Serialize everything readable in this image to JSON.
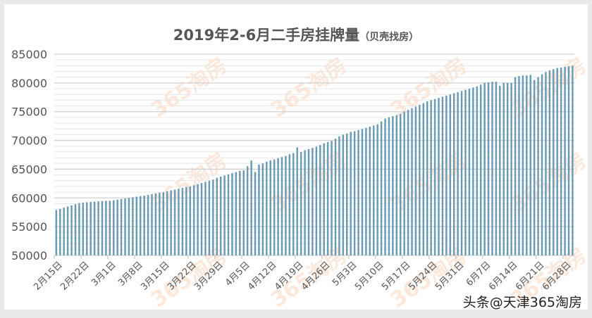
{
  "title": "2019年2-6月二手房挂牌量",
  "subtitle": "（贝壳找房）",
  "watermark": "365淘房",
  "footer": "头条@天津365淘房",
  "colors": {
    "bar": "#6a9ab4",
    "bar_edge": "#4f7f99",
    "grid_major": "#d0d0d0",
    "grid_minor": "#e6e6e6"
  },
  "chart_data": {
    "type": "bar",
    "title": "2019年2-6月二手房挂牌量（贝壳找房）",
    "ylim": [
      50000,
      85000
    ],
    "yticks": [
      50000,
      55000,
      60000,
      65000,
      70000,
      75000,
      80000,
      85000
    ],
    "grid": true,
    "start_date": "2月15日",
    "tick_labels": [
      "2月15日",
      "2月22日",
      "3月1日",
      "3月8日",
      "3月15日",
      "3月22日",
      "3月29日",
      "4月5日",
      "4月12日",
      "4月19日",
      "4月26日",
      "5月3日",
      "5月10日",
      "5月17日",
      "5月24日",
      "5月31日",
      "6月7日",
      "6月14日",
      "6月21日",
      "6月28日"
    ],
    "values": [
      57900,
      58100,
      58300,
      58500,
      58700,
      58900,
      59100,
      59200,
      59250,
      59300,
      59350,
      59400,
      59450,
      59500,
      59500,
      59600,
      59700,
      59800,
      59900,
      60000,
      60100,
      60200,
      60300,
      60400,
      60500,
      60650,
      60800,
      60900,
      61000,
      61150,
      61300,
      61450,
      61600,
      61750,
      61900,
      62000,
      62200,
      62400,
      62600,
      62800,
      63000,
      63200,
      63500,
      63700,
      63900,
      64100,
      64300,
      64500,
      64700,
      64800,
      65500,
      66500,
      64500,
      65800,
      66000,
      66300,
      66500,
      66700,
      66900,
      67100,
      67300,
      67600,
      67800,
      68800,
      68000,
      68300,
      68500,
      68700,
      68900,
      69200,
      69500,
      69700,
      69900,
      70300,
      70700,
      71000,
      71200,
      71500,
      71600,
      71800,
      72000,
      72200,
      72400,
      72600,
      72800,
      73300,
      73800,
      74000,
      74200,
      74400,
      74600,
      75000,
      75300,
      75600,
      75900,
      76200,
      76500,
      76800,
      77000,
      77200,
      77400,
      77600,
      77800,
      78000,
      78200,
      78400,
      78600,
      78800,
      79000,
      79200,
      79400,
      79700,
      80000,
      80100,
      80200,
      80200,
      79500,
      80000,
      80000,
      80000,
      81000,
      81200,
      81300,
      81300,
      81400,
      80500,
      81000,
      81500,
      81900,
      82200,
      82400,
      82600,
      82700,
      82800,
      82900,
      83000
    ]
  }
}
